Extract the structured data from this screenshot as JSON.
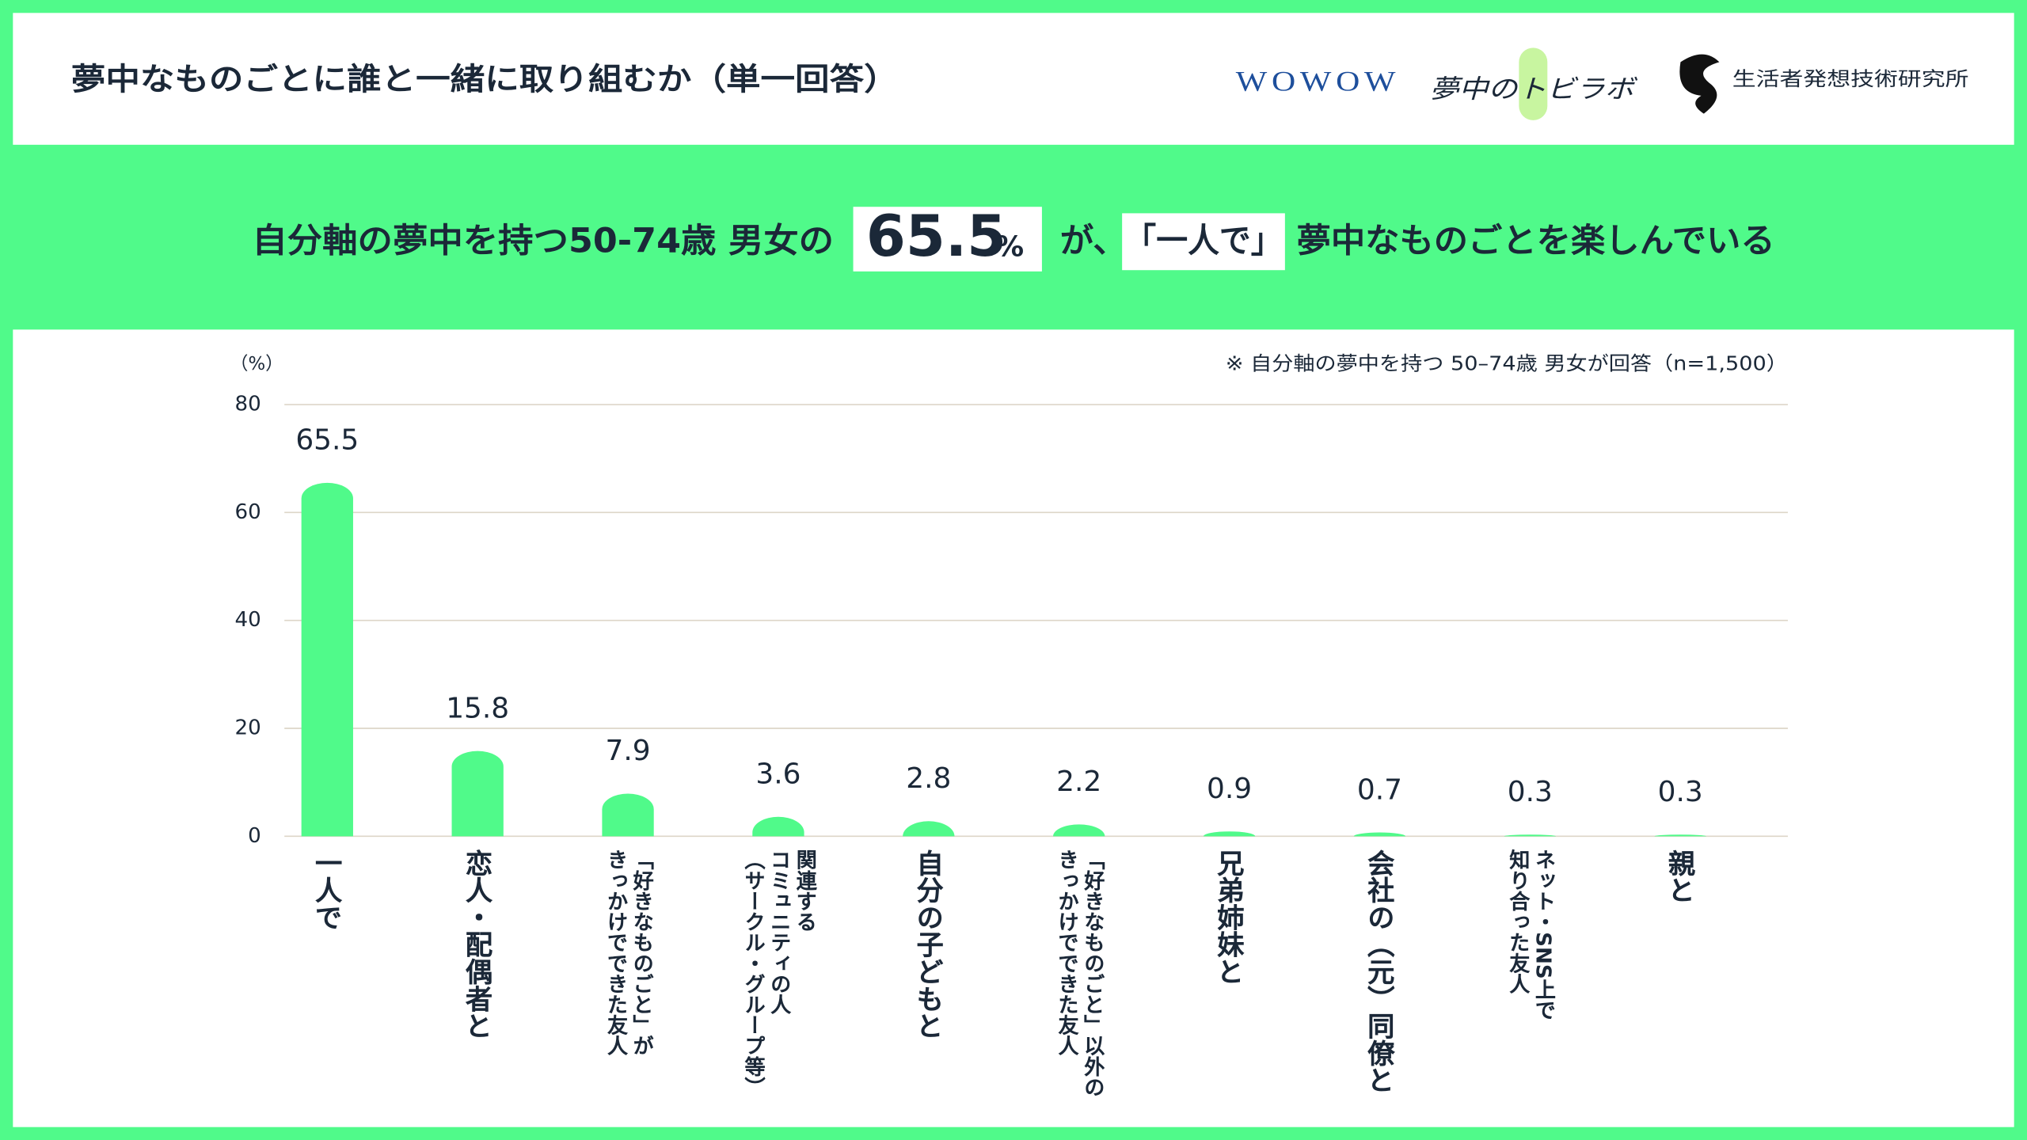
{
  "header": {
    "title": "夢中なものごとに誰と一緒に取り組むか（単一回答）",
    "logos": [
      "WOWOW",
      "夢中のトビラボ",
      "生活者発想技術研究所"
    ]
  },
  "headline": {
    "lead": "自分軸の夢中を持つ50-74歳 男女の",
    "highlight": "65.5",
    "unit": "%",
    "middle": "が、",
    "quote": "「一人で」",
    "tail": "夢中なものごとを楽しんでいる"
  },
  "chart_data": {
    "type": "bar",
    "y_unit_label": "（%）",
    "note": "※ 自分軸の夢中を持つ 50–74歳 男女が回答（n=1,500）",
    "categories": [
      "一人で",
      "恋人・配偶者と",
      "「好きなものごと」が\nきっかけでできた友人",
      "関連する\nコミュニティの人\n（サークル・グループ等）",
      "自分の子どもと",
      "「好きなものごと」以外の\nきっかけでできた友人",
      "兄弟姉妹と",
      "会社の（元）同僚と",
      "ネット・SNS上で\n知り合った友人",
      "親と"
    ],
    "values": [
      65.5,
      15.8,
      7.9,
      3.6,
      2.8,
      2.2,
      0.9,
      0.7,
      0.3,
      0.3
    ],
    "color": "#50fa8a",
    "ylim": [
      0,
      80
    ],
    "yticks": [
      0,
      20,
      40,
      60,
      80
    ],
    "grid": true
  }
}
